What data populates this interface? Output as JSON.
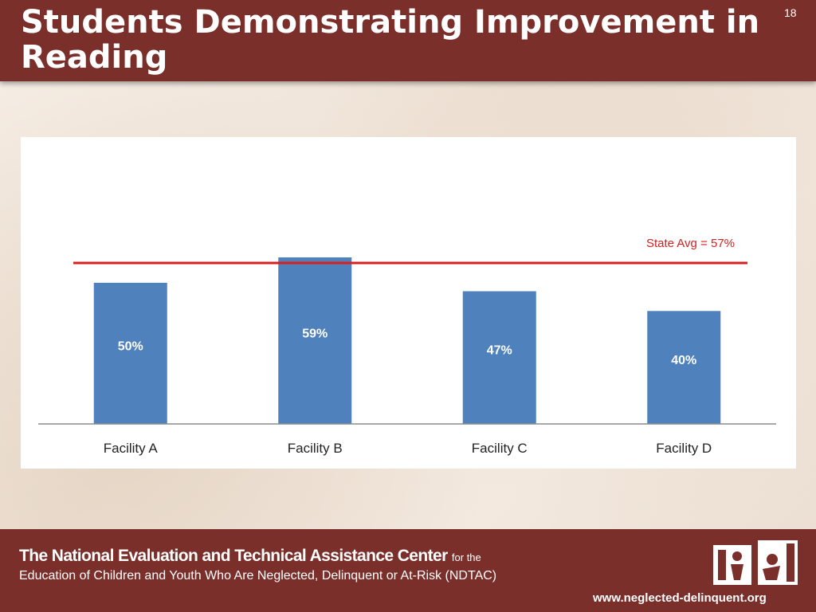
{
  "slide": {
    "title": "Students Demonstrating Improvement in Reading",
    "number": "18"
  },
  "chart_data": {
    "type": "bar",
    "categories": [
      "Facility A",
      "Facility B",
      "Facility C",
      "Facility D"
    ],
    "values": [
      50,
      59,
      47,
      40
    ],
    "data_labels": [
      "50%",
      "59%",
      "47%",
      "40%"
    ],
    "reference_line": {
      "value": 57,
      "label": "State Avg = 57%",
      "color": "#d42020"
    },
    "bar_color": "#4f81bd",
    "ylim": [
      0,
      70
    ],
    "grid": false,
    "title": "",
    "xlabel": "",
    "ylabel": ""
  },
  "footer": {
    "org_name": "The National Evaluation and Technical Assistance Center",
    "org_suffix": "for the",
    "org_line2": "Education of Children and Youth Who Are Neglected, Delinquent or At-Risk (NDTAC)",
    "url": "www.neglected-delinquent.org",
    "logo_icon": "nd-logo-icon"
  },
  "colors": {
    "banner": "#7b2f2a",
    "text_on_banner": "#ffffff"
  }
}
